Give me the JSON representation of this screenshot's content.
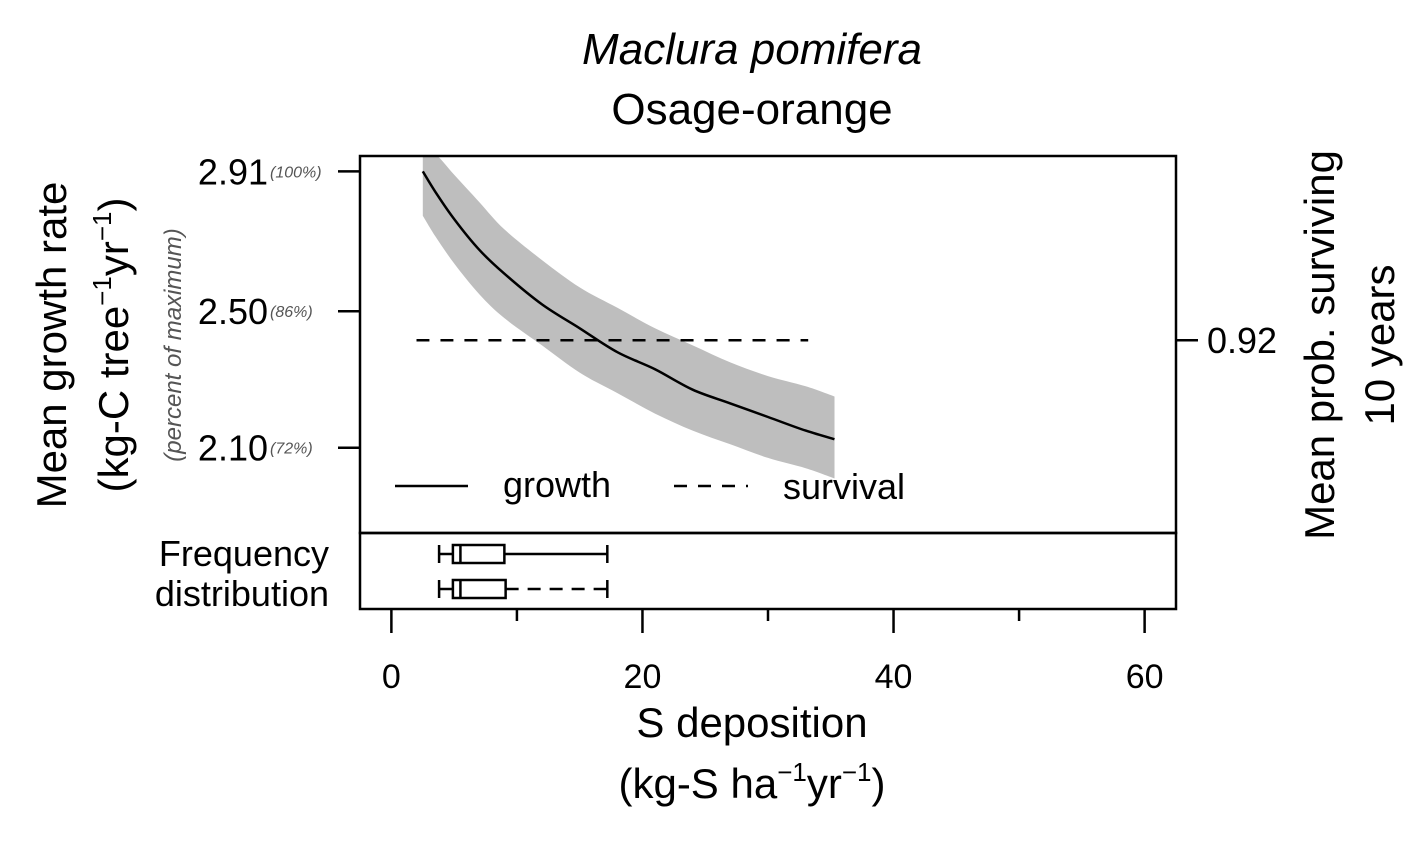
{
  "chart_data": {
    "type": "line",
    "title": "Maclura pomifera",
    "subtitle": "Osage-orange",
    "xlabel_line1": "S deposition",
    "xlabel_line2": {
      "pre": "(kg-S ha",
      "exp1": "−1",
      "mid": "yr",
      "exp2": "−1",
      "post": ")"
    },
    "ylabel_line1": "Mean growth rate",
    "ylabel_line2": {
      "pre": "(kg-C tree",
      "exp1": "−1",
      "mid": "yr",
      "exp2": "−1",
      "post": ")"
    },
    "ylabel_secondary": "(percent of maximum)",
    "y2label_line1": "Mean prob. surviving",
    "y2label_line2": "10 years",
    "xlim": [
      -2.5,
      62.5
    ],
    "ylim": [
      1.85,
      2.955
    ],
    "x_ticks": [
      0,
      20,
      40,
      60
    ],
    "x_minor_ticks": [
      10,
      30,
      50
    ],
    "y_ticks": [
      {
        "value": 2.91,
        "label": "2.91",
        "pct": "(100%)"
      },
      {
        "value": 2.5,
        "label": "2.50",
        "pct": "(86%)"
      },
      {
        "value": 2.1,
        "label": "2.10",
        "pct": "(72%)"
      }
    ],
    "y2_ticks": [
      {
        "value": 2.415,
        "label": "0.92"
      }
    ],
    "series": [
      {
        "name": "growth",
        "style": "solid",
        "x": [
          2.5,
          3.5,
          5,
          7,
          9,
          12,
          15,
          18,
          21,
          24,
          27,
          30,
          33,
          35.3
        ],
        "y": [
          2.91,
          2.85,
          2.77,
          2.68,
          2.61,
          2.52,
          2.45,
          2.38,
          2.33,
          2.27,
          2.23,
          2.19,
          2.15,
          2.125
        ],
        "band_lower": [
          2.78,
          2.72,
          2.64,
          2.55,
          2.48,
          2.4,
          2.32,
          2.26,
          2.2,
          2.15,
          2.11,
          2.07,
          2.04,
          2.01
        ],
        "band_upper": [
          2.96,
          2.96,
          2.9,
          2.82,
          2.74,
          2.65,
          2.57,
          2.51,
          2.45,
          2.4,
          2.35,
          2.31,
          2.28,
          2.25
        ]
      },
      {
        "name": "survival",
        "style": "dashed",
        "x": [
          2,
          33.2
        ],
        "y": [
          2.415,
          2.415
        ]
      }
    ],
    "band_color": "#bebebe",
    "legend": {
      "position": "bottom-left",
      "entries": [
        "growth",
        "survival"
      ]
    },
    "frequency_distribution": {
      "label_line1": "Frequency",
      "label_line2": "distribution",
      "boxes": [
        {
          "series": "growth",
          "whisker": "solid",
          "min": 3.8,
          "q1": 4.9,
          "median": 5.5,
          "q3": 9.0,
          "max": 17.2
        },
        {
          "series": "survival",
          "whisker": "dashed",
          "min": 3.8,
          "q1": 4.9,
          "median": 5.5,
          "q3": 9.1,
          "max": 17.2
        }
      ]
    },
    "grid": false
  }
}
